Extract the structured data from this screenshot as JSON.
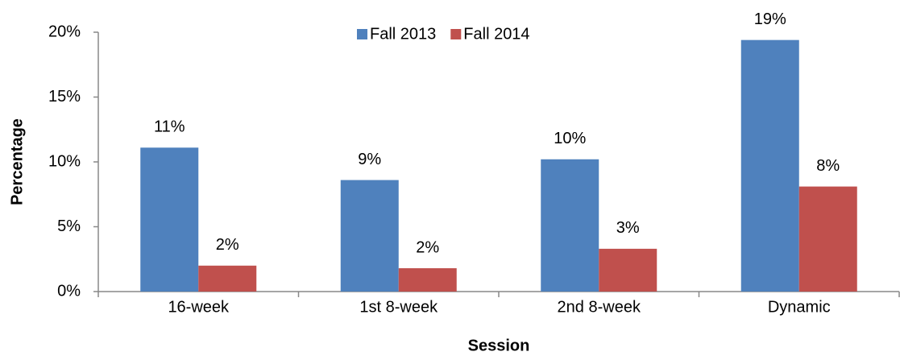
{
  "chart_data": {
    "type": "bar",
    "x_label": "Session",
    "y_label": "Percentage",
    "categories": [
      "16-week",
      "1st 8-week",
      "2nd 8-week",
      "Dynamic"
    ],
    "series": [
      {
        "name": "Fall 2013",
        "color": "#4f81bd",
        "values": [
          11.1,
          8.6,
          10.2,
          19.4
        ],
        "value_labels": [
          "11%",
          "9%",
          "10%",
          "19%"
        ]
      },
      {
        "name": "Fall 2014",
        "color": "#c0504d",
        "values": [
          2.0,
          1.8,
          3.3,
          8.1
        ],
        "value_labels": [
          "2%",
          "2%",
          "3%",
          "8%"
        ]
      }
    ],
    "ylim": [
      0,
      20
    ],
    "yticks": [
      {
        "value": 0,
        "label": "0%"
      },
      {
        "value": 5,
        "label": "5%"
      },
      {
        "value": 10,
        "label": "10%"
      },
      {
        "value": 15,
        "label": "15%"
      },
      {
        "value": 20,
        "label": "20%"
      }
    ],
    "legend": "top",
    "grid": false
  }
}
